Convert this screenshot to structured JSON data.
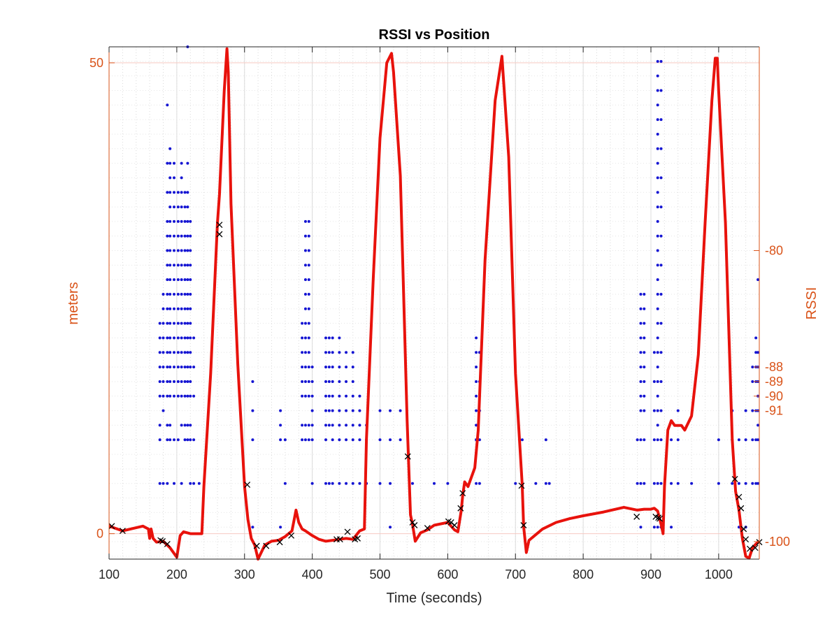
{
  "chart_data": {
    "type": "line",
    "title": "RSSI vs Position",
    "xlabel": "Time (seconds)",
    "ylabel_left": "meters",
    "ylabel_right": "RSSI",
    "xlim": [
      100,
      1060
    ],
    "xticks": [
      100,
      200,
      300,
      400,
      500,
      600,
      700,
      800,
      900,
      1000
    ],
    "ylim_left": [
      -2.7,
      51.7
    ],
    "yticks_left": [
      0,
      50
    ],
    "ylim_right": [
      -101.2,
      -66
    ],
    "yticks_right": [
      -80,
      -88,
      -89,
      -90,
      -91,
      -100
    ],
    "grid": true,
    "colors": {
      "position": "#e8120c",
      "rssi": "#1414d2",
      "markers": "#000000",
      "axis_right": "#d95319",
      "axis_left": "#d95319"
    },
    "series": [
      {
        "name": "",
        "kind": "line",
        "x": [
          100,
          120,
          150,
          158,
          160,
          162,
          165,
          170,
          180,
          190,
          200,
          205,
          210,
          220,
          230,
          237,
          240,
          250,
          260,
          263,
          270,
          274,
          276,
          280,
          290,
          300,
          305,
          310,
          315,
          320,
          330,
          340,
          350,
          360,
          370,
          376,
          380,
          385,
          390,
          400,
          410,
          420,
          430,
          440,
          450,
          460,
          470,
          477,
          480,
          490,
          500,
          510,
          517,
          520,
          530,
          540,
          545,
          548,
          552,
          560,
          570,
          580,
          600,
          605,
          610,
          615,
          620,
          622,
          625,
          630,
          640,
          645,
          655,
          670,
          680,
          690,
          700,
          710,
          712,
          716,
          720,
          740,
          760,
          780,
          800,
          830,
          860,
          880,
          890,
          900,
          905,
          910,
          915,
          918,
          920,
          925,
          930,
          935,
          940,
          945,
          950,
          960,
          970,
          980,
          990,
          995,
          998,
          1000,
          1010,
          1020,
          1025,
          1030,
          1035,
          1040,
          1045,
          1050,
          1055,
          1060
        ],
        "y": [
          0.8,
          0.3,
          0.8,
          0.5,
          -0.5,
          0.5,
          -0.5,
          -0.9,
          -0.8,
          -1.5,
          -2.5,
          -0.2,
          0.2,
          0,
          0,
          0,
          5,
          17,
          33,
          36,
          47,
          51.5,
          49,
          35,
          18,
          5,
          1.5,
          -0.5,
          -1.2,
          -2.7,
          -1.2,
          -0.8,
          -0.7,
          -0.3,
          0.3,
          2.5,
          1.2,
          0.5,
          0.3,
          -0.2,
          -0.6,
          -0.8,
          -0.7,
          -0.6,
          -0.5,
          -0.6,
          0.3,
          0.5,
          10,
          27,
          42,
          50,
          51,
          49,
          38,
          12,
          2,
          1,
          -0.8,
          0.1,
          0.4,
          0.9,
          1.2,
          0.8,
          0.4,
          0.2,
          2.5,
          4,
          5.5,
          5,
          7,
          11,
          29,
          46,
          50.7,
          40,
          17,
          5.2,
          0.8,
          -2,
          -0.7,
          0.5,
          1.2,
          1.6,
          1.9,
          2.3,
          2.8,
          2.5,
          2.6,
          2.6,
          2.7,
          2.4,
          1.0,
          0,
          5,
          11,
          12,
          11.5,
          11.5,
          11.5,
          11,
          12.5,
          19,
          33,
          46,
          50.5,
          50.5,
          47,
          33,
          10,
          4.5,
          2.5,
          -0.5,
          -2.4,
          -2.6,
          -1.5,
          -1.1,
          -0.8
        ]
      },
      {
        "name": "",
        "kind": "markers",
        "x": [
          104,
          120,
          176,
          179,
          186,
          263,
          263,
          304,
          318,
          332,
          352,
          369,
          436,
          441,
          452,
          463,
          467,
          541,
          548,
          551,
          570,
          601,
          605,
          610,
          619,
          622,
          709,
          712,
          879,
          907,
          911,
          913,
          1024,
          1030,
          1033,
          1037,
          1040,
          1046,
          1054,
          1060
        ],
        "y": [
          0.8,
          0.3,
          -0.7,
          -0.8,
          -1.1,
          32.8,
          31.8,
          5.2,
          -1.3,
          -1.3,
          -0.9,
          -0.2,
          -0.6,
          -0.6,
          0.2,
          -0.6,
          -0.5,
          8.2,
          1.2,
          0.9,
          0.6,
          1.3,
          1.2,
          0.9,
          2.7,
          4.3,
          5.1,
          0.9,
          1.8,
          1.8,
          1.7,
          1.6,
          5.8,
          3.9,
          2.7,
          0.5,
          -0.6,
          -1.6,
          -1.5,
          -0.9
        ]
      },
      {
        "name": "",
        "kind": "scatter",
        "axis": "right",
        "columns": [
          {
            "x": 175,
            "y": [
              -96,
              -93,
              -92,
              -90,
              -89,
              -88,
              -87,
              -86,
              -85
            ]
          },
          {
            "x": 180,
            "y": [
              -96,
              -91,
              -90,
              -89,
              -88,
              -87,
              -86,
              -85,
              -84,
              -83
            ]
          },
          {
            "x": 186,
            "y": [
              -96,
              -93,
              -92,
              -90,
              -89,
              -88,
              -87,
              -86,
              -85,
              -84,
              -83,
              -82,
              -81,
              -80,
              -79,
              -78,
              -76,
              -74,
              -70
            ]
          },
          {
            "x": 190,
            "y": [
              -93,
              -92,
              -90,
              -89,
              -88,
              -87,
              -86,
              -85,
              -84,
              -83,
              -82,
              -81,
              -80,
              -79,
              -78,
              -77,
              -76,
              -75,
              -74,
              -73
            ]
          },
          {
            "x": 196,
            "y": [
              -96,
              -93,
              -90,
              -89,
              -88,
              -87,
              -86,
              -85,
              -84,
              -83,
              -82,
              -81,
              -80,
              -79,
              -78,
              -77,
              -76,
              -75,
              -74
            ]
          },
          {
            "x": 202,
            "y": [
              -93,
              -90,
              -89,
              -88,
              -87,
              -86,
              -85,
              -84,
              -83,
              -82,
              -81,
              -80,
              -79,
              -78,
              -77,
              -76
            ]
          },
          {
            "x": 207,
            "y": [
              -96,
              -92,
              -90,
              -89,
              -88,
              -87,
              -86,
              -85,
              -84,
              -83,
              -82,
              -81,
              -80,
              -79,
              -78,
              -77,
              -76,
              -75,
              -74
            ]
          },
          {
            "x": 212,
            "y": [
              -93,
              -92,
              -90,
              -89,
              -88,
              -87,
              -86,
              -85,
              -84,
              -83,
              -82,
              -81,
              -80,
              -79,
              -78,
              -77,
              -76
            ]
          },
          {
            "x": 216,
            "y": [
              -93,
              -92,
              -90,
              -89,
              -88,
              -87,
              -86,
              -85,
              -84,
              -83,
              -82,
              -81,
              -80,
              -79,
              -78,
              -77,
              -76,
              -74,
              -66,
              -64
            ]
          },
          {
            "x": 220,
            "y": [
              -96,
              -93,
              -92,
              -90,
              -89,
              -88,
              -87,
              -86,
              -85,
              -84,
              -83,
              -82,
              -81,
              -80,
              -79,
              -78
            ]
          },
          {
            "x": 225,
            "y": [
              -96,
              -93,
              -90,
              -88,
              -86
            ]
          },
          {
            "x": 233,
            "y": [
              -96
            ]
          },
          {
            "x": 312,
            "y": [
              -99,
              -93,
              -91,
              -89
            ]
          },
          {
            "x": 353,
            "y": [
              -99,
              -93,
              -92,
              -91
            ]
          },
          {
            "x": 360,
            "y": [
              -96,
              -93
            ]
          },
          {
            "x": 385,
            "y": [
              -93,
              -92,
              -90,
              -89,
              -88,
              -87,
              -86,
              -85
            ]
          },
          {
            "x": 390,
            "y": [
              -93,
              -92,
              -90,
              -89,
              -88,
              -87,
              -86,
              -85,
              -84,
              -83,
              -82,
              -81,
              -80,
              -79,
              -78
            ]
          },
          {
            "x": 395,
            "y": [
              -93,
              -92,
              -90,
              -89,
              -88,
              -87,
              -86,
              -85,
              -84,
              -83,
              -82,
              -81,
              -80,
              -79,
              -78
            ]
          },
          {
            "x": 400,
            "y": [
              -96,
              -93,
              -92,
              -91,
              -90,
              -89,
              -88
            ]
          },
          {
            "x": 420,
            "y": [
              -96,
              -93,
              -92,
              -91,
              -90,
              -89,
              -88,
              -87,
              -86
            ]
          },
          {
            "x": 425,
            "y": [
              -96,
              -92,
              -91,
              -90,
              -89,
              -88,
              -87,
              -86
            ]
          },
          {
            "x": 430,
            "y": [
              -96,
              -93,
              -92,
              -91,
              -90,
              -89,
              -88,
              -87,
              -86
            ]
          },
          {
            "x": 440,
            "y": [
              -96,
              -93,
              -92,
              -91,
              -90,
              -89,
              -88,
              -87,
              -86
            ]
          },
          {
            "x": 450,
            "y": [
              -96,
              -93,
              -92,
              -91,
              -90,
              -89,
              -88,
              -87
            ]
          },
          {
            "x": 460,
            "y": [
              -96,
              -93,
              -92,
              -91,
              -90,
              -89,
              -88,
              -87
            ]
          },
          {
            "x": 470,
            "y": [
              -96,
              -93,
              -92,
              -91,
              -90
            ]
          },
          {
            "x": 480,
            "y": [
              -96,
              -93,
              -92
            ]
          },
          {
            "x": 500,
            "y": [
              -96,
              -93,
              -91
            ]
          },
          {
            "x": 515,
            "y": [
              -99,
              -96,
              -93,
              -91
            ]
          },
          {
            "x": 530,
            "y": [
              -93,
              -91
            ]
          },
          {
            "x": 548,
            "y": [
              -96
            ]
          },
          {
            "x": 580,
            "y": [
              -96
            ]
          },
          {
            "x": 600,
            "y": [
              -96
            ]
          },
          {
            "x": 642,
            "y": [
              -96,
              -93,
              -92,
              -91,
              -90,
              -89,
              -88,
              -87,
              -86
            ]
          },
          {
            "x": 647,
            "y": [
              -96,
              -93,
              -91,
              -89,
              -87
            ]
          },
          {
            "x": 700,
            "y": [
              -96
            ]
          },
          {
            "x": 710,
            "y": [
              -96,
              -93
            ]
          },
          {
            "x": 730,
            "y": [
              -96
            ]
          },
          {
            "x": 745,
            "y": [
              -96,
              -93
            ]
          },
          {
            "x": 750,
            "y": [
              -96
            ]
          },
          {
            "x": 880,
            "y": [
              -96,
              -93
            ]
          },
          {
            "x": 885,
            "y": [
              -99,
              -96,
              -93,
              -91,
              -90,
              -89,
              -88,
              -87,
              -86,
              -85,
              -84,
              -83
            ]
          },
          {
            "x": 890,
            "y": [
              -96,
              -93,
              -91,
              -90,
              -89,
              -88,
              -87,
              -86,
              -85,
              -84,
              -83
            ]
          },
          {
            "x": 905,
            "y": [
              -99,
              -96,
              -93,
              -91,
              -89,
              -87
            ]
          },
          {
            "x": 910,
            "y": [
              -99,
              -96,
              -93,
              -92,
              -91,
              -90,
              -89,
              -88,
              -87,
              -86,
              -85,
              -84,
              -83,
              -82,
              -81,
              -80,
              -79,
              -78,
              -77,
              -76,
              -75,
              -74,
              -73,
              -72,
              -71,
              -70,
              -69,
              -68,
              -67
            ]
          },
          {
            "x": 915,
            "y": [
              -99,
              -96,
              -93,
              -91,
              -89,
              -87,
              -85,
              -83,
              -81,
              -79,
              -77,
              -75,
              -73,
              -71,
              -69,
              -67
            ]
          },
          {
            "x": 930,
            "y": [
              -99,
              -96,
              -93
            ]
          },
          {
            "x": 940,
            "y": [
              -96,
              -93,
              -91
            ]
          },
          {
            "x": 960,
            "y": [
              -96
            ]
          },
          {
            "x": 1000,
            "y": [
              -96,
              -93
            ]
          },
          {
            "x": 1020,
            "y": [
              -96,
              -93,
              -91
            ]
          },
          {
            "x": 1030,
            "y": [
              -99,
              -96,
              -93
            ]
          },
          {
            "x": 1040,
            "y": [
              -99,
              -96,
              -93,
              -91
            ]
          },
          {
            "x": 1050,
            "y": [
              -96,
              -93,
              -91,
              -89,
              -88
            ]
          },
          {
            "x": 1055,
            "y": [
              -96,
              -93,
              -91,
              -89,
              -88,
              -87,
              -86
            ]
          },
          {
            "x": 1058,
            "y": [
              -96,
              -93,
              -92,
              -91,
              -90,
              -89,
              -88,
              -87,
              -82
            ]
          }
        ]
      }
    ]
  }
}
